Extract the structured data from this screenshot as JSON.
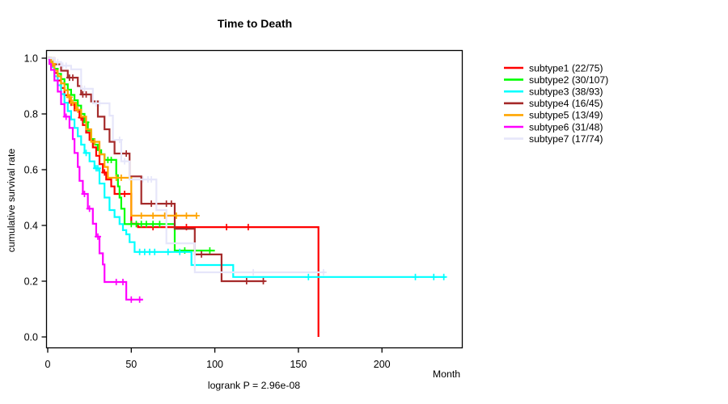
{
  "chart_data": {
    "type": "line",
    "subtype": "kaplan-meier-step",
    "title": "Time to Death",
    "annotation": "logrank P = 2.96e-08",
    "x_axis": {
      "label": "Month",
      "ticks": [
        0,
        50,
        100,
        150,
        200
      ],
      "range": [
        0,
        248
      ]
    },
    "y_axis": {
      "label": "cumulative survival rate",
      "ticks": [
        0,
        0.2,
        0.4,
        0.6,
        0.8,
        1
      ],
      "range": [
        0,
        1
      ]
    },
    "grid": false,
    "legend_position": "right-outside",
    "series": [
      {
        "name": "subtype1 (22/75)",
        "color": "#ff0000",
        "steps": [
          [
            0,
            1.0
          ],
          [
            1,
            0.987
          ],
          [
            2,
            0.973
          ],
          [
            4,
            0.947
          ],
          [
            6,
            0.92
          ],
          [
            8,
            0.893
          ],
          [
            10,
            0.867
          ],
          [
            13,
            0.84
          ],
          [
            16,
            0.813
          ],
          [
            19,
            0.787
          ],
          [
            21,
            0.76
          ],
          [
            23,
            0.733
          ],
          [
            25,
            0.707
          ],
          [
            27,
            0.68
          ],
          [
            29,
            0.65
          ],
          [
            31,
            0.62
          ],
          [
            33,
            0.59
          ],
          [
            35,
            0.565
          ],
          [
            38,
            0.54
          ],
          [
            40,
            0.513
          ],
          [
            50,
            0.406
          ],
          [
            54,
            0.394
          ],
          [
            162,
            0.0
          ]
        ],
        "censors": [
          [
            14,
            0.84
          ],
          [
            20,
            0.787
          ],
          [
            34,
            0.59
          ],
          [
            43,
            0.513
          ],
          [
            46,
            0.513
          ],
          [
            63,
            0.394
          ],
          [
            83,
            0.394
          ],
          [
            107,
            0.394
          ],
          [
            120,
            0.394
          ]
        ]
      },
      {
        "name": "subtype2 (30/107)",
        "color": "#00ff00",
        "steps": [
          [
            0,
            1.0
          ],
          [
            2,
            0.981
          ],
          [
            4,
            0.962
          ],
          [
            6,
            0.944
          ],
          [
            8,
            0.925
          ],
          [
            10,
            0.906
          ],
          [
            12,
            0.887
          ],
          [
            14,
            0.868
          ],
          [
            16,
            0.849
          ],
          [
            18,
            0.83
          ],
          [
            20,
            0.8
          ],
          [
            22,
            0.77
          ],
          [
            24,
            0.74
          ],
          [
            26,
            0.71
          ],
          [
            28,
            0.69
          ],
          [
            30,
            0.67
          ],
          [
            32,
            0.655
          ],
          [
            34,
            0.635
          ],
          [
            41,
            0.58
          ],
          [
            42,
            0.54
          ],
          [
            43,
            0.5
          ],
          [
            44,
            0.46
          ],
          [
            46,
            0.405
          ],
          [
            76,
            0.31
          ],
          [
            100,
            0.31
          ]
        ],
        "censors": [
          [
            23,
            0.77
          ],
          [
            36,
            0.635
          ],
          [
            38,
            0.635
          ],
          [
            50,
            0.405
          ],
          [
            53,
            0.405
          ],
          [
            56,
            0.405
          ],
          [
            59,
            0.405
          ],
          [
            63,
            0.405
          ],
          [
            67,
            0.405
          ],
          [
            82,
            0.31
          ],
          [
            97,
            0.31
          ]
        ]
      },
      {
        "name": "subtype3 (38/93)",
        "color": "#00ffff",
        "steps": [
          [
            0,
            1.0
          ],
          [
            2,
            0.968
          ],
          [
            4,
            0.935
          ],
          [
            6,
            0.903
          ],
          [
            8,
            0.871
          ],
          [
            10,
            0.84
          ],
          [
            12,
            0.81
          ],
          [
            14,
            0.78
          ],
          [
            16,
            0.75
          ],
          [
            18,
            0.72
          ],
          [
            20,
            0.69
          ],
          [
            22,
            0.66
          ],
          [
            25,
            0.63
          ],
          [
            28,
            0.605
          ],
          [
            31,
            0.55
          ],
          [
            34,
            0.5
          ],
          [
            37,
            0.455
          ],
          [
            40,
            0.43
          ],
          [
            43,
            0.405
          ],
          [
            45,
            0.383
          ],
          [
            47,
            0.368
          ],
          [
            49,
            0.34
          ],
          [
            52,
            0.305
          ],
          [
            86,
            0.258
          ],
          [
            111,
            0.215
          ],
          [
            238,
            0.215
          ]
        ],
        "censors": [
          [
            23,
            0.66
          ],
          [
            29,
            0.605
          ],
          [
            30,
            0.605
          ],
          [
            55,
            0.305
          ],
          [
            58,
            0.305
          ],
          [
            61,
            0.305
          ],
          [
            64,
            0.305
          ],
          [
            72,
            0.305
          ],
          [
            79,
            0.305
          ],
          [
            156,
            0.215
          ],
          [
            220,
            0.215
          ],
          [
            231,
            0.215
          ],
          [
            237,
            0.215
          ]
        ]
      },
      {
        "name": "subtype4 (16/45)",
        "color": "#a52a2a",
        "steps": [
          [
            0,
            1.0
          ],
          [
            4,
            0.978
          ],
          [
            8,
            0.955
          ],
          [
            12,
            0.93
          ],
          [
            18,
            0.9
          ],
          [
            20,
            0.87
          ],
          [
            26,
            0.845
          ],
          [
            30,
            0.79
          ],
          [
            34,
            0.745
          ],
          [
            37,
            0.7
          ],
          [
            40,
            0.658
          ],
          [
            49,
            0.576
          ],
          [
            56,
            0.478
          ],
          [
            76,
            0.388
          ],
          [
            88,
            0.296
          ],
          [
            104,
            0.2
          ],
          [
            130,
            0.2
          ]
        ],
        "censors": [
          [
            13,
            0.93
          ],
          [
            15,
            0.93
          ],
          [
            21,
            0.87
          ],
          [
            23,
            0.87
          ],
          [
            44,
            0.658
          ],
          [
            47,
            0.658
          ],
          [
            62,
            0.478
          ],
          [
            71,
            0.478
          ],
          [
            74,
            0.478
          ],
          [
            92,
            0.296
          ],
          [
            119,
            0.2
          ],
          [
            129,
            0.2
          ]
        ]
      },
      {
        "name": "subtype5 (13/49)",
        "color": "#ffa500",
        "steps": [
          [
            0,
            1.0
          ],
          [
            2,
            0.98
          ],
          [
            4,
            0.955
          ],
          [
            6,
            0.935
          ],
          [
            8,
            0.91
          ],
          [
            10,
            0.885
          ],
          [
            12,
            0.86
          ],
          [
            14,
            0.84
          ],
          [
            17,
            0.815
          ],
          [
            20,
            0.79
          ],
          [
            23,
            0.745
          ],
          [
            26,
            0.7
          ],
          [
            31,
            0.655
          ],
          [
            34,
            0.61
          ],
          [
            36,
            0.571
          ],
          [
            50,
            0.435
          ],
          [
            89,
            0.435
          ]
        ],
        "censors": [
          [
            3,
            0.98
          ],
          [
            13,
            0.86
          ],
          [
            15,
            0.84
          ],
          [
            18,
            0.815
          ],
          [
            28,
            0.7
          ],
          [
            41,
            0.571
          ],
          [
            44,
            0.571
          ],
          [
            56,
            0.435
          ],
          [
            63,
            0.435
          ],
          [
            70,
            0.435
          ],
          [
            77,
            0.435
          ],
          [
            83,
            0.435
          ],
          [
            89,
            0.435
          ]
        ]
      },
      {
        "name": "subtype6 (31/48)",
        "color": "#ff00ff",
        "steps": [
          [
            0,
            1.0
          ],
          [
            1,
            0.979
          ],
          [
            2,
            0.958
          ],
          [
            4,
            0.92
          ],
          [
            6,
            0.88
          ],
          [
            8,
            0.835
          ],
          [
            10,
            0.79
          ],
          [
            13,
            0.75
          ],
          [
            15,
            0.71
          ],
          [
            16,
            0.66
          ],
          [
            18,
            0.61
          ],
          [
            19,
            0.56
          ],
          [
            21,
            0.513
          ],
          [
            24,
            0.46
          ],
          [
            27,
            0.406
          ],
          [
            29,
            0.36
          ],
          [
            31,
            0.3
          ],
          [
            33,
            0.26
          ],
          [
            34,
            0.197
          ],
          [
            47,
            0.134
          ],
          [
            57,
            0.134
          ]
        ],
        "censors": [
          [
            11,
            0.79
          ],
          [
            22,
            0.513
          ],
          [
            25,
            0.46
          ],
          [
            30,
            0.36
          ],
          [
            41,
            0.197
          ],
          [
            45,
            0.197
          ],
          [
            50,
            0.134
          ],
          [
            55,
            0.134
          ]
        ]
      },
      {
        "name": "subtype7 (17/74)",
        "color": "#e6e6fa",
        "steps": [
          [
            0,
            1.0
          ],
          [
            4,
            0.986
          ],
          [
            8,
            0.973
          ],
          [
            14,
            0.96
          ],
          [
            20,
            0.89
          ],
          [
            27,
            0.838
          ],
          [
            37,
            0.794
          ],
          [
            39,
            0.707
          ],
          [
            44,
            0.63
          ],
          [
            49,
            0.565
          ],
          [
            65,
            0.455
          ],
          [
            71,
            0.336
          ],
          [
            88,
            0.232
          ],
          [
            166,
            0.232
          ]
        ],
        "censors": [
          [
            6,
            0.986
          ],
          [
            9,
            0.973
          ],
          [
            11,
            0.973
          ],
          [
            22,
            0.89
          ],
          [
            29,
            0.838
          ],
          [
            31,
            0.838
          ],
          [
            43,
            0.707
          ],
          [
            46,
            0.63
          ],
          [
            57,
            0.565
          ],
          [
            60,
            0.565
          ],
          [
            62,
            0.565
          ],
          [
            123,
            0.232
          ],
          [
            165,
            0.232
          ]
        ]
      }
    ]
  }
}
